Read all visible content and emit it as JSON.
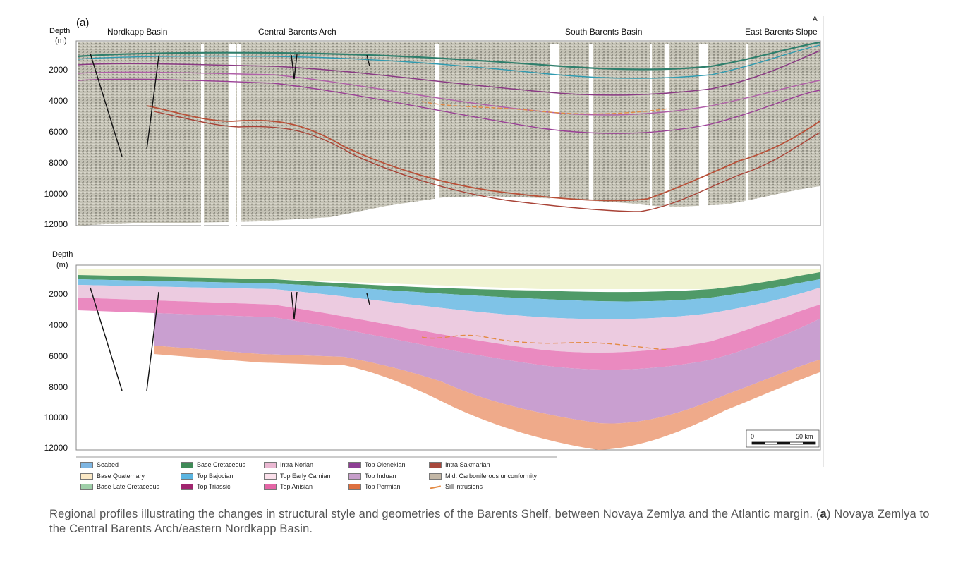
{
  "figure": {
    "panel_label": "(a)",
    "corner_label": "A'",
    "depth_label_top": "Depth",
    "depth_unit_top": "(m)",
    "depth_label_bottom": "Depth",
    "depth_unit_bottom": "(m)",
    "regions": {
      "nordkapp": "Nordkapp Basin",
      "central": "Central Barents Arch",
      "south": "South Barents Basin",
      "east": "East Barents Slope"
    },
    "top_ticks": [
      "2000",
      "4000",
      "6000",
      "8000",
      "10000",
      "12000"
    ],
    "bottom_ticks": [
      "2000",
      "4000",
      "6000",
      "8000",
      "10000",
      "12000"
    ],
    "scale_bar": {
      "start": "0",
      "end": "50 km"
    }
  },
  "legend": [
    {
      "label": "Seabed",
      "color": "#7fb6e2",
      "kind": "fill"
    },
    {
      "label": "Base Quaternary",
      "color": "#fbe9c6",
      "kind": "fill"
    },
    {
      "label": "Base Late Cretaceous",
      "color": "#9fcfa9",
      "kind": "fill"
    },
    {
      "label": "Base Cretaceous",
      "color": "#3f8a57",
      "kind": "fill"
    },
    {
      "label": "Top Bajocian",
      "color": "#5bb5e1",
      "kind": "fill"
    },
    {
      "label": "Top Triassic",
      "color": "#a0256e",
      "kind": "fill"
    },
    {
      "label": "Intra Norian",
      "color": "#eab8d2",
      "kind": "fill"
    },
    {
      "label": "Top Early Carnian",
      "color": "#fbe0eb",
      "kind": "fill"
    },
    {
      "label": "Top Anisian",
      "color": "#e466a6",
      "kind": "fill"
    },
    {
      "label": "Top Olenekian",
      "color": "#8e3f95",
      "kind": "fill"
    },
    {
      "label": "Top Induan",
      "color": "#c79ecb",
      "kind": "fill"
    },
    {
      "label": "Top Permian",
      "color": "#de7040",
      "kind": "fill"
    },
    {
      "label": "Intra Sakmarian",
      "color": "#a8483c",
      "kind": "fill"
    },
    {
      "label": "Mid. Carboniferous unconformity",
      "color": "#c3b7a6",
      "kind": "fill"
    },
    {
      "label": "Sill intrusions",
      "color": "#e38b45",
      "kind": "line"
    }
  ],
  "caption": {
    "before": "Regional profiles illustrating the changes in structural style and geometries of the Barents Shelf, between Novaya Zemlya and the Atlantic margin. (",
    "bold": "a",
    "after": ") Novaya Zemlya to the Central Barents Arch/eastern Nordkapp Basin."
  }
}
